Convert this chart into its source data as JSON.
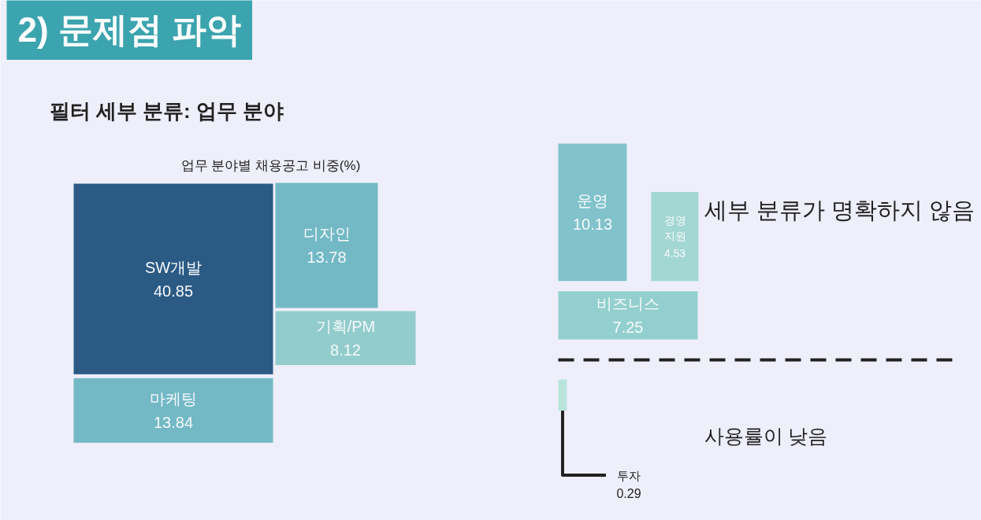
{
  "chart_data": {
    "type": "other",
    "title": "2) 문제점 파악",
    "subtitle": "필터 세부 분류: 업무 분야",
    "categories": [
      "SW개발",
      "마케팅",
      "디자인",
      "기획/PM",
      "운영",
      "경영지원",
      "비즈니스",
      "투자"
    ],
    "values": [
      40.85,
      13.84,
      13.78,
      8.12,
      10.13,
      4.53,
      7.25,
      0.29
    ],
    "colors": [
      "#2b5a84",
      "#72b9c5",
      "#72b9c5",
      "#92cccc",
      "#82c3cb",
      "#a3d7d3",
      "#94cfcf",
      "#b8e4d9"
    ],
    "data_labels": true,
    "annotations": [
      "업무 분야별 채용공고 비중(%)",
      "세부 분류가 명확하지 않음",
      "사용률이 낮음"
    ]
  }
}
